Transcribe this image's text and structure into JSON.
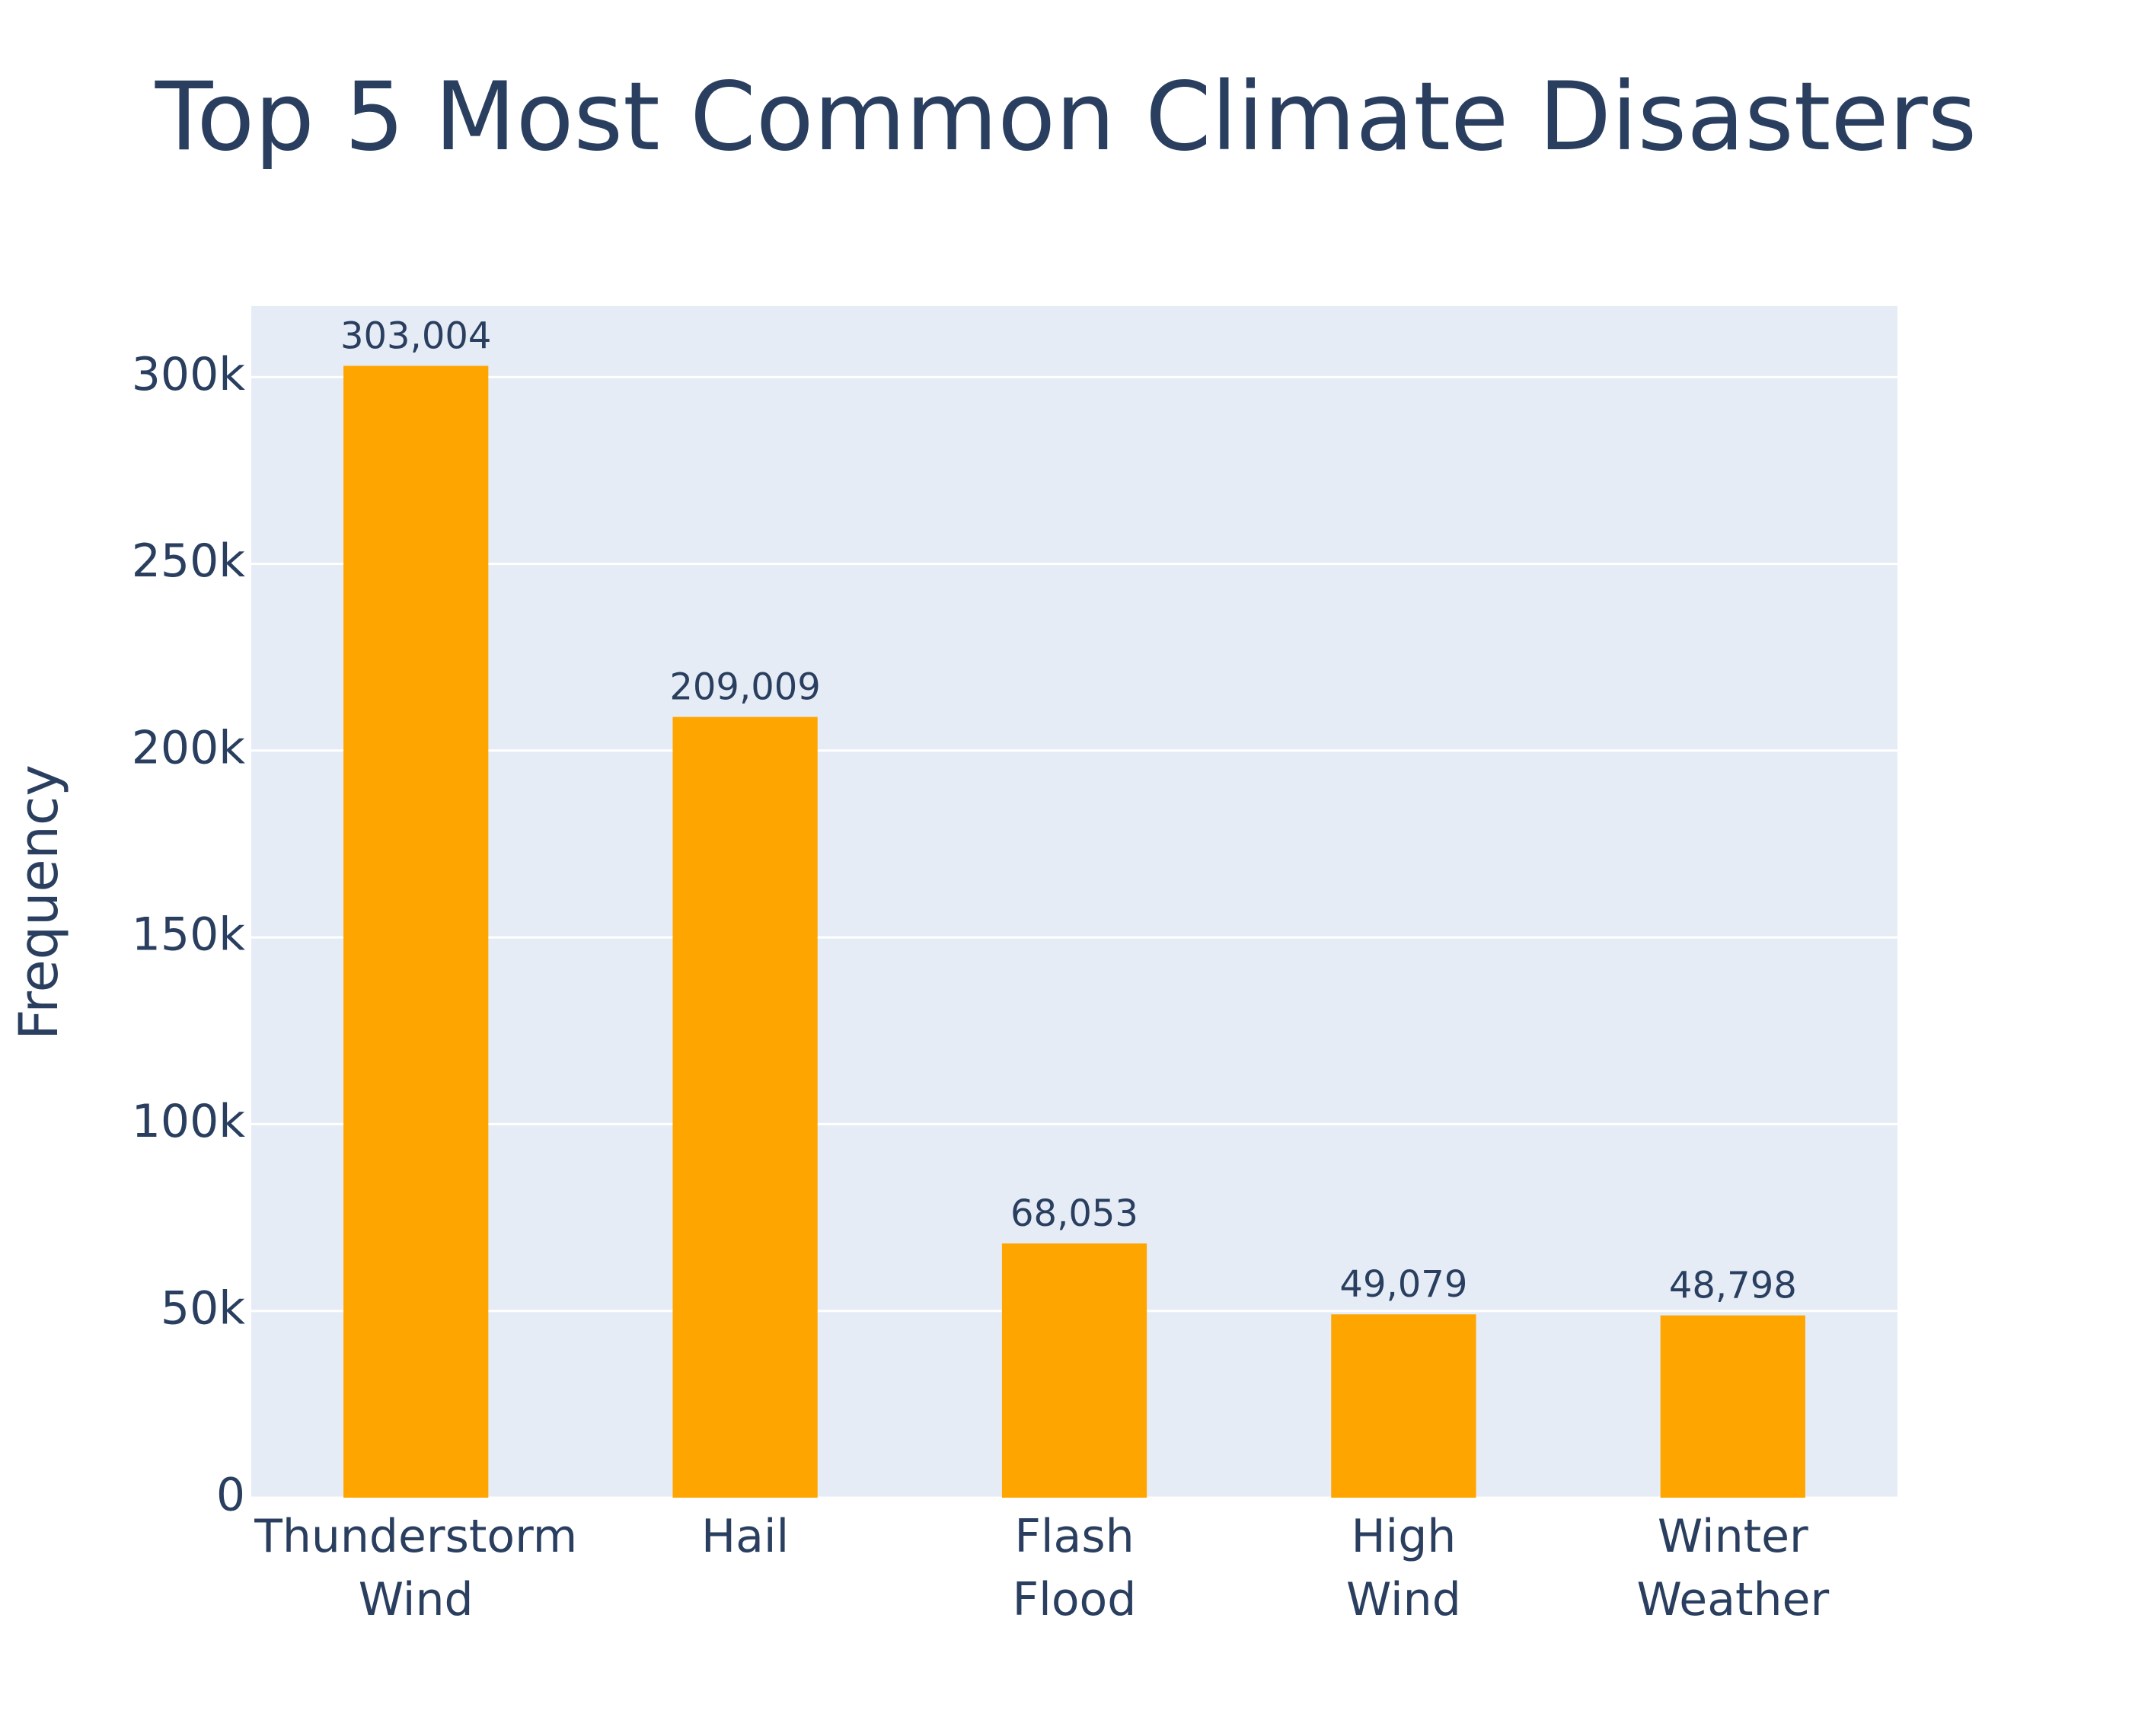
{
  "chart_data": {
    "type": "bar",
    "title": "Top 5 Most Common Climate Disasters",
    "y_label": "Frequency",
    "categories": [
      "Thunderstorm Wind",
      "Hail",
      "Flash Flood",
      "High Wind",
      "Winter Weather"
    ],
    "values": [
      303004,
      209009,
      68053,
      49079,
      48798
    ],
    "value_labels": [
      "303,004",
      "209,009",
      "68,053",
      "49,079",
      "48,798"
    ],
    "color": "#ffa500",
    "ylim": [
      0,
      319000
    ],
    "yticks": [
      0,
      {
        "value": 50000,
        "label": "50k"
      },
      {
        "value": 100000,
        "label": "100k"
      },
      {
        "value": 150000,
        "label": "150k"
      },
      {
        "value": 200000,
        "label": "200k"
      },
      {
        "value": 250000,
        "label": "250k"
      },
      {
        "value": 300000,
        "label": "300k"
      }
    ],
    "grid": true
  }
}
